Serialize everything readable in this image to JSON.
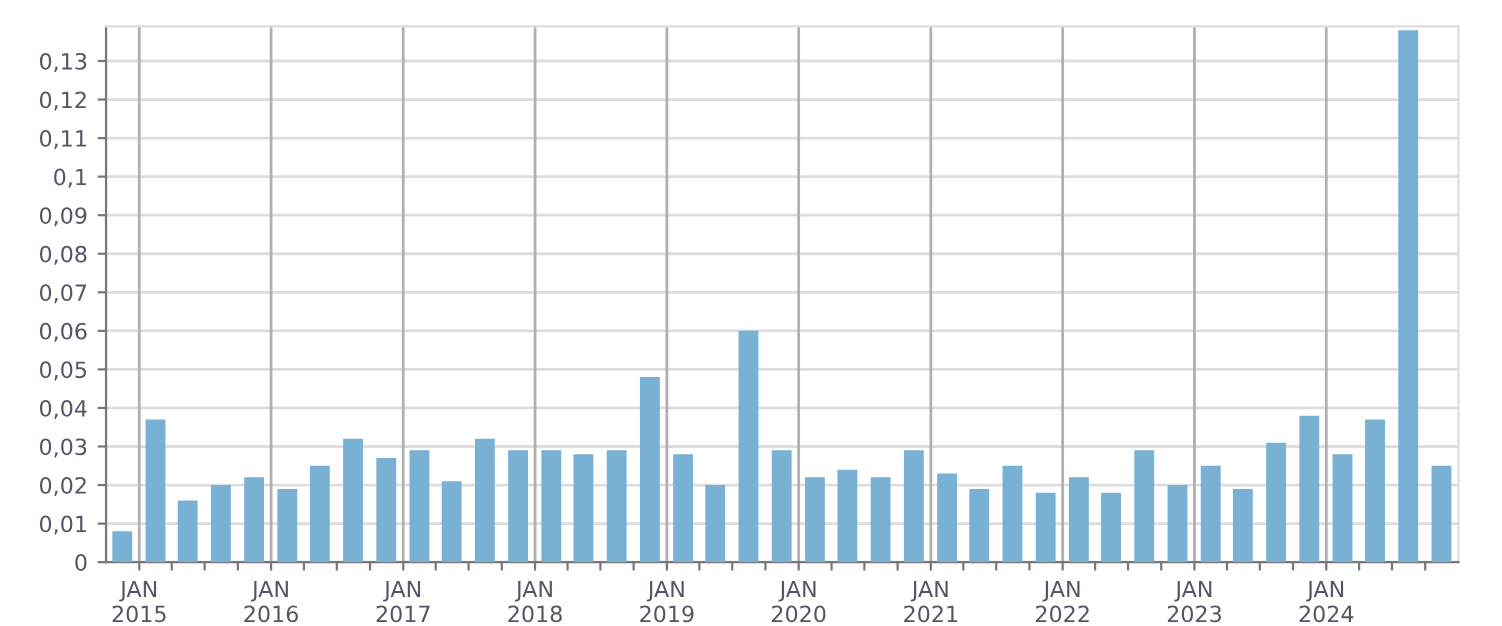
{
  "chart_data": {
    "type": "bar",
    "x": [
      "2014-11-15",
      "2015-02-15",
      "2015-05-15",
      "2015-08-15",
      "2015-11-15",
      "2016-02-15",
      "2016-05-15",
      "2016-08-15",
      "2016-11-15",
      "2017-02-15",
      "2017-05-15",
      "2017-08-15",
      "2017-11-15",
      "2018-02-15",
      "2018-05-15",
      "2018-08-15",
      "2018-11-15",
      "2019-02-15",
      "2019-05-15",
      "2019-08-15",
      "2019-11-15",
      "2020-02-15",
      "2020-05-15",
      "2020-08-15",
      "2020-11-15",
      "2021-02-15",
      "2021-05-15",
      "2021-08-15",
      "2021-11-15",
      "2022-02-15",
      "2022-05-15",
      "2022-08-15",
      "2022-11-15",
      "2023-02-15",
      "2023-05-15",
      "2023-08-15",
      "2023-11-15",
      "2024-02-15",
      "2024-05-15",
      "2024-08-15",
      "2024-11-15"
    ],
    "values": [
      0.008,
      0.037,
      0.016,
      0.02,
      0.022,
      0.019,
      0.025,
      0.032,
      0.027,
      0.029,
      0.021,
      0.032,
      0.029,
      0.029,
      0.028,
      0.029,
      0.048,
      0.028,
      0.02,
      0.06,
      0.029,
      0.022,
      0.024,
      0.022,
      0.029,
      0.023,
      0.019,
      0.025,
      0.018,
      0.022,
      0.018,
      0.029,
      0.02,
      0.025,
      0.019,
      0.031,
      0.038,
      0.028,
      0.037,
      0.138,
      0.025
    ],
    "color": "#78b1d3",
    "xlim": [
      "2014-10-01",
      "2025-01-01"
    ],
    "xticks": [
      {
        "value": "2015-01-01",
        "label": "JAN\n2015"
      },
      {
        "value": "2015-04-01",
        "label": null
      },
      {
        "value": "2015-07-01",
        "label": null
      },
      {
        "value": "2015-10-01",
        "label": null
      },
      {
        "value": "2016-01-01",
        "label": "JAN\n2016"
      },
      {
        "value": "2016-04-01",
        "label": null
      },
      {
        "value": "2016-07-01",
        "label": null
      },
      {
        "value": "2016-10-01",
        "label": null
      },
      {
        "value": "2017-01-01",
        "label": "JAN\n2017"
      },
      {
        "value": "2017-04-01",
        "label": null
      },
      {
        "value": "2017-07-01",
        "label": null
      },
      {
        "value": "2017-10-01",
        "label": null
      },
      {
        "value": "2018-01-01",
        "label": "JAN\n2018"
      },
      {
        "value": "2018-04-01",
        "label": null
      },
      {
        "value": "2018-07-01",
        "label": null
      },
      {
        "value": "2018-10-01",
        "label": null
      },
      {
        "value": "2019-01-01",
        "label": "JAN\n2019"
      },
      {
        "value": "2019-04-01",
        "label": null
      },
      {
        "value": "2019-07-01",
        "label": null
      },
      {
        "value": "2019-10-01",
        "label": null
      },
      {
        "value": "2020-01-01",
        "label": "JAN\n2020"
      },
      {
        "value": "2020-04-01",
        "label": null
      },
      {
        "value": "2020-07-01",
        "label": null
      },
      {
        "value": "2020-10-01",
        "label": null
      },
      {
        "value": "2021-01-01",
        "label": "JAN\n2021"
      },
      {
        "value": "2021-04-01",
        "label": null
      },
      {
        "value": "2021-07-01",
        "label": null
      },
      {
        "value": "2021-10-01",
        "label": null
      },
      {
        "value": "2022-01-01",
        "label": "JAN\n2022"
      },
      {
        "value": "2022-04-01",
        "label": null
      },
      {
        "value": "2022-07-01",
        "label": null
      },
      {
        "value": "2022-10-01",
        "label": null
      },
      {
        "value": "2023-01-01",
        "label": "JAN\n2023"
      },
      {
        "value": "2023-04-01",
        "label": null
      },
      {
        "value": "2023-07-01",
        "label": null
      },
      {
        "value": "2023-10-01",
        "label": null
      },
      {
        "value": "2024-01-01",
        "label": "JAN\n2024"
      },
      {
        "value": "2024-04-01",
        "label": null
      },
      {
        "value": "2024-07-01",
        "label": null
      },
      {
        "value": "2024-10-01",
        "label": null
      }
    ],
    "ylim": [
      0,
      0.139
    ],
    "yticks": [
      0,
      {
        "value": 0.01,
        "label": "0,01"
      },
      {
        "value": 0.02,
        "label": "0,02"
      },
      {
        "value": 0.03,
        "label": "0,03"
      },
      {
        "value": 0.04,
        "label": "0,04"
      },
      {
        "value": 0.05,
        "label": "0,05"
      },
      {
        "value": 0.06,
        "label": "0,06"
      },
      {
        "value": 0.07,
        "label": "0,07"
      },
      {
        "value": 0.08,
        "label": "0,08"
      },
      {
        "value": 0.09,
        "label": "0,09"
      },
      {
        "value": 0.1,
        "label": "0,1"
      },
      {
        "value": 0.11,
        "label": "0,11"
      },
      {
        "value": 0.12,
        "label": "0,12"
      },
      {
        "value": 0.13,
        "label": "0,13"
      }
    ],
    "grid": true
  }
}
